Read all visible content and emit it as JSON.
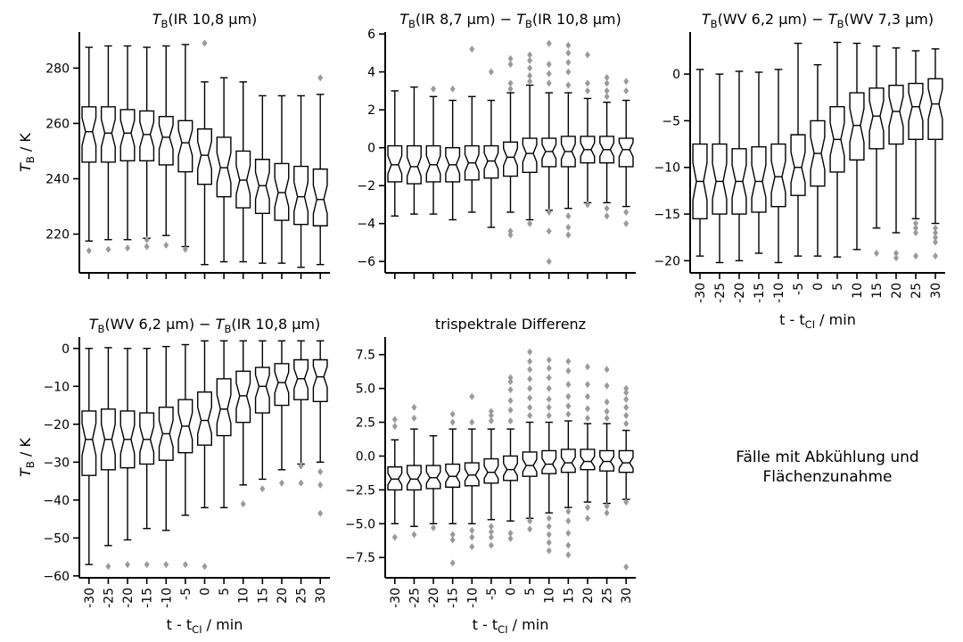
{
  "chart_data": [
    {
      "type": "boxplot",
      "title": "T_B(IR 10,8 µm)",
      "title_parts": [
        "T",
        "B",
        "(IR 10,8 µm)"
      ],
      "ylabel": "T_B / K",
      "ylabel_parts": [
        "T",
        "B",
        " / K"
      ],
      "xlabel": "",
      "ylim": [
        206,
        293
      ],
      "yticks": [
        220,
        240,
        260,
        280
      ],
      "categories": [
        "-30",
        "-25",
        "-20",
        "-15",
        "-10",
        "-5",
        "0",
        "5",
        "10",
        "15",
        "20",
        "25",
        "30"
      ],
      "boxes": [
        {
          "whislo": 217.5,
          "q1": 246,
          "med": 257,
          "q3": 266,
          "whishi": 287.5,
          "fliers": [
            214
          ]
        },
        {
          "whislo": 218,
          "q1": 246,
          "med": 256.5,
          "q3": 266,
          "whishi": 288,
          "fliers": [
            214.5
          ]
        },
        {
          "whislo": 218,
          "q1": 246.5,
          "med": 256.5,
          "q3": 265,
          "whishi": 288,
          "fliers": [
            215
          ]
        },
        {
          "whislo": 218.5,
          "q1": 246.5,
          "med": 256,
          "q3": 264.5,
          "whishi": 287.5,
          "fliers": [
            215.5,
            218
          ]
        },
        {
          "whislo": 219.5,
          "q1": 245,
          "med": 255,
          "q3": 262.5,
          "whishi": 288,
          "fliers": [
            216
          ]
        },
        {
          "whislo": 215.5,
          "q1": 242.5,
          "med": 253,
          "q3": 261,
          "whishi": 288.5,
          "fliers": [
            214.5
          ]
        },
        {
          "whislo": 209,
          "q1": 238,
          "med": 248.5,
          "q3": 258,
          "whishi": 275,
          "fliers": [
            289
          ]
        },
        {
          "whislo": 210,
          "q1": 233.5,
          "med": 244,
          "q3": 255,
          "whishi": 276.5,
          "fliers": []
        },
        {
          "whislo": 210,
          "q1": 229.5,
          "med": 239.5,
          "q3": 250,
          "whishi": 275,
          "fliers": []
        },
        {
          "whislo": 209.5,
          "q1": 227.5,
          "med": 237.5,
          "q3": 247,
          "whishi": 270,
          "fliers": []
        },
        {
          "whislo": 209.5,
          "q1": 225,
          "med": 235,
          "q3": 245.5,
          "whishi": 270,
          "fliers": []
        },
        {
          "whislo": 208,
          "q1": 223.5,
          "med": 233.5,
          "q3": 244.5,
          "whishi": 270,
          "fliers": []
        },
        {
          "whislo": 209,
          "q1": 223,
          "med": 232.5,
          "q3": 243.5,
          "whishi": 270.5,
          "fliers": [
            276.5
          ]
        }
      ]
    },
    {
      "type": "boxplot",
      "title": "T_B(IR 8,7 µm) − T_B(IR 10,8 µm)",
      "title_parts": [
        "T",
        "B",
        "(IR 8,7 µm) − ",
        "T",
        "B",
        "(IR 10,8 µm)"
      ],
      "ylabel": "",
      "xlabel": "",
      "ylim": [
        -6.6,
        6.1
      ],
      "yticks": [
        -6,
        -4,
        -2,
        0,
        2,
        4,
        6
      ],
      "categories": [
        "-30",
        "-25",
        "-20",
        "-15",
        "-10",
        "-5",
        "0",
        "5",
        "10",
        "15",
        "20",
        "25",
        "30"
      ],
      "boxes": [
        {
          "whislo": -3.6,
          "q1": -1.8,
          "med": -0.9,
          "q3": 0.1,
          "whishi": 3.0,
          "fliers": []
        },
        {
          "whislo": -3.5,
          "q1": -1.9,
          "med": -1.0,
          "q3": 0.1,
          "whishi": 3.2,
          "fliers": []
        },
        {
          "whislo": -3.5,
          "q1": -1.8,
          "med": -0.9,
          "q3": 0.1,
          "whishi": 2.7,
          "fliers": [
            3.1
          ]
        },
        {
          "whislo": -3.8,
          "q1": -1.8,
          "med": -0.9,
          "q3": 0.0,
          "whishi": 2.5,
          "fliers": [
            3.1
          ]
        },
        {
          "whislo": -3.4,
          "q1": -1.7,
          "med": -0.8,
          "q3": 0.1,
          "whishi": 2.7,
          "fliers": [
            5.2
          ]
        },
        {
          "whislo": -4.2,
          "q1": -1.6,
          "med": -0.7,
          "q3": 0.1,
          "whishi": 2.5,
          "fliers": [
            4.0
          ]
        },
        {
          "whislo": -3.4,
          "q1": -1.5,
          "med": -0.5,
          "q3": 0.3,
          "whishi": 2.9,
          "fliers": [
            3.1,
            3.4,
            4.4,
            4.7,
            -4.4,
            -4.6
          ]
        },
        {
          "whislo": -3.8,
          "q1": -1.3,
          "med": -0.3,
          "q3": 0.5,
          "whishi": 3.3,
          "fliers": [
            3.5,
            3.8,
            4.2,
            4.6,
            4.9,
            -4.0
          ]
        },
        {
          "whislo": -3.3,
          "q1": -1.0,
          "med": -0.2,
          "q3": 0.5,
          "whishi": 2.9,
          "fliers": [
            3.4,
            3.9,
            4.4,
            5.5,
            -3.4,
            -4.4,
            -6.0
          ]
        },
        {
          "whislo": -3.2,
          "q1": -1.0,
          "med": -0.2,
          "q3": 0.6,
          "whishi": 2.9,
          "fliers": [
            3.3,
            4.0,
            4.5,
            5.0,
            5.4,
            -3.6,
            -4.2,
            -4.6
          ]
        },
        {
          "whislo": -2.9,
          "q1": -0.8,
          "med": -0.1,
          "q3": 0.6,
          "whishi": 2.6,
          "fliers": [
            3.0,
            3.4,
            4.9,
            -3.0
          ]
        },
        {
          "whislo": -2.9,
          "q1": -0.8,
          "med": -0.1,
          "q3": 0.6,
          "whishi": 2.4,
          "fliers": [
            2.7,
            3.0,
            3.4,
            3.7,
            -3.2,
            -3.6
          ]
        },
        {
          "whislo": -3.1,
          "q1": -1.0,
          "med": -0.1,
          "q3": 0.5,
          "whishi": 2.5,
          "fliers": [
            3.0,
            3.5,
            -3.4,
            -4.0
          ]
        }
      ]
    },
    {
      "type": "boxplot",
      "title": "T_B(WV 6,2 µm) − T_B(WV 7,3 µm)",
      "title_parts": [
        "T",
        "B",
        "(WV 6,2 µm) − ",
        "T",
        "B",
        "(WV 7,3 µm)"
      ],
      "ylabel": "",
      "xlabel": "t - t_CI / min",
      "xlabel_parts": [
        "t - t",
        "CI",
        " / min"
      ],
      "ylim": [
        -21.3,
        4.5
      ],
      "yticks": [
        -20,
        -15,
        -10,
        -5,
        0
      ],
      "categories": [
        "-30",
        "-25",
        "-20",
        "-15",
        "-10",
        "-5",
        "0",
        "5",
        "10",
        "15",
        "20",
        "25",
        "30"
      ],
      "boxes": [
        {
          "whislo": -19.5,
          "q1": -15.5,
          "med": -11.5,
          "q3": -7.5,
          "whishi": 0.5,
          "fliers": []
        },
        {
          "whislo": -20.2,
          "q1": -15.0,
          "med": -11.5,
          "q3": -7.5,
          "whishi": 0.0,
          "fliers": []
        },
        {
          "whislo": -20.0,
          "q1": -15.0,
          "med": -11.5,
          "q3": -8.0,
          "whishi": 0.3,
          "fliers": []
        },
        {
          "whislo": -19.2,
          "q1": -14.8,
          "med": -11.5,
          "q3": -7.8,
          "whishi": 0.2,
          "fliers": []
        },
        {
          "whislo": -20.2,
          "q1": -14.2,
          "med": -11.0,
          "q3": -7.5,
          "whishi": 0.5,
          "fliers": []
        },
        {
          "whislo": -19.5,
          "q1": -13.0,
          "med": -10.0,
          "q3": -6.5,
          "whishi": 3.3,
          "fliers": []
        },
        {
          "whislo": -19.5,
          "q1": -12.0,
          "med": -8.5,
          "q3": -5.0,
          "whishi": 1.0,
          "fliers": []
        },
        {
          "whislo": -19.6,
          "q1": -10.5,
          "med": -7.0,
          "q3": -3.5,
          "whishi": 3.4,
          "fliers": []
        },
        {
          "whislo": -18.8,
          "q1": -9.2,
          "med": -5.5,
          "q3": -2.0,
          "whishi": 3.3,
          "fliers": []
        },
        {
          "whislo": -16.5,
          "q1": -8.0,
          "med": -4.5,
          "q3": -1.5,
          "whishi": 3.0,
          "fliers": [
            -19.2
          ]
        },
        {
          "whislo": -17.0,
          "q1": -7.5,
          "med": -4.0,
          "q3": -1.2,
          "whishi": 2.8,
          "fliers": [
            -19.2,
            -19.7
          ]
        },
        {
          "whislo": -15.5,
          "q1": -7.0,
          "med": -3.5,
          "q3": -1.0,
          "whishi": 2.5,
          "fliers": [
            -16.0,
            -16.5,
            -17.0,
            -19.5
          ]
        },
        {
          "whislo": -16.0,
          "q1": -7.0,
          "med": -3.2,
          "q3": -0.5,
          "whishi": 2.7,
          "fliers": [
            -16.5,
            -17.0,
            -17.5,
            -18.0,
            -19.5
          ]
        }
      ]
    },
    {
      "type": "boxplot",
      "title": "T_B(WV 6,2 µm) − T_B(IR 10,8 µm)",
      "title_parts": [
        "T",
        "B",
        "(WV 6,2 µm) − ",
        "T",
        "B",
        "(IR 10,8 µm)"
      ],
      "ylabel": "T_B / K",
      "ylabel_parts": [
        "T",
        "B",
        " / K"
      ],
      "xlabel": "t - t_CI / min",
      "xlabel_parts": [
        "t - t",
        "CI",
        " / min"
      ],
      "ylim": [
        -60.5,
        3.0
      ],
      "yticks": [
        -60,
        -50,
        -40,
        -30,
        -20,
        -10,
        0
      ],
      "categories": [
        "-30",
        "-25",
        "-20",
        "-15",
        "-10",
        "-5",
        "0",
        "5",
        "10",
        "15",
        "20",
        "25",
        "30"
      ],
      "boxes": [
        {
          "whislo": -57.0,
          "q1": -33.5,
          "med": -24.0,
          "q3": -16.5,
          "whishi": 0.0,
          "fliers": []
        },
        {
          "whislo": -52.0,
          "q1": -32.0,
          "med": -24.0,
          "q3": -16.0,
          "whishi": 0.2,
          "fliers": [
            -57.5
          ]
        },
        {
          "whislo": -50.5,
          "q1": -31.5,
          "med": -24.0,
          "q3": -16.5,
          "whishi": 0.0,
          "fliers": [
            -57.0
          ]
        },
        {
          "whislo": -47.5,
          "q1": -30.5,
          "med": -24.0,
          "q3": -17.0,
          "whishi": 0.0,
          "fliers": [
            -57.0
          ]
        },
        {
          "whislo": -48.0,
          "q1": -29.5,
          "med": -22.5,
          "q3": -15.5,
          "whishi": 0.5,
          "fliers": [
            -57.0
          ]
        },
        {
          "whislo": -44.0,
          "q1": -27.5,
          "med": -20.5,
          "q3": -13.5,
          "whishi": 1.0,
          "fliers": [
            -57.0
          ]
        },
        {
          "whislo": -42.0,
          "q1": -25.5,
          "med": -19.0,
          "q3": -11.5,
          "whishi": 2.0,
          "fliers": [
            -57.5
          ]
        },
        {
          "whislo": -42.0,
          "q1": -23.0,
          "med": -16.0,
          "q3": -8.0,
          "whishi": 2.0,
          "fliers": []
        },
        {
          "whislo": -36.0,
          "q1": -19.5,
          "med": -12.5,
          "q3": -6.0,
          "whishi": 2.0,
          "fliers": [
            -41.0
          ]
        },
        {
          "whislo": -34.5,
          "q1": -17.0,
          "med": -10.0,
          "q3": -5.0,
          "whishi": 2.0,
          "fliers": [
            -37.0
          ]
        },
        {
          "whislo": -32.0,
          "q1": -15.0,
          "med": -9.0,
          "q3": -4.0,
          "whishi": 2.0,
          "fliers": [
            -35.5
          ]
        },
        {
          "whislo": -30.5,
          "q1": -13.5,
          "med": -8.0,
          "q3": -3.0,
          "whishi": 2.0,
          "fliers": [
            -31.0,
            -35.5
          ]
        },
        {
          "whislo": -30.0,
          "q1": -14.0,
          "med": -7.5,
          "q3": -3.0,
          "whishi": 2.0,
          "fliers": [
            -32.5,
            -36.0,
            -43.5
          ]
        }
      ]
    },
    {
      "type": "boxplot",
      "title": "trispektrale Differenz",
      "ylabel": "",
      "xlabel": "t - t_CI / min",
      "xlabel_parts": [
        "t - t",
        "CI",
        " / min"
      ],
      "ylim": [
        -9.0,
        8.8
      ],
      "yticks": [
        -7.5,
        -5.0,
        -2.5,
        0.0,
        2.5,
        5.0,
        7.5
      ],
      "ytick_labels": [
        "−7.5",
        "−5.0",
        "−2.5",
        "0.0",
        "2.5",
        "5.0",
        "7.5"
      ],
      "categories": [
        "-30",
        "-25",
        "-20",
        "-15",
        "-10",
        "-5",
        "0",
        "5",
        "10",
        "15",
        "20",
        "25",
        "30"
      ],
      "boxes": [
        {
          "whislo": -5.0,
          "q1": -2.5,
          "med": -1.7,
          "q3": -0.8,
          "whishi": 1.2,
          "fliers": [
            2.2,
            2.7,
            -6.0
          ]
        },
        {
          "whislo": -5.2,
          "q1": -2.5,
          "med": -1.7,
          "q3": -0.7,
          "whishi": 2.0,
          "fliers": [
            2.8,
            3.6,
            -5.8
          ]
        },
        {
          "whislo": -5.0,
          "q1": -2.4,
          "med": -1.6,
          "q3": -0.7,
          "whishi": 1.5,
          "fliers": [
            -5.3
          ]
        },
        {
          "whislo": -5.0,
          "q1": -2.3,
          "med": -1.5,
          "q3": -0.6,
          "whishi": 2.0,
          "fliers": [
            2.5,
            3.1,
            -5.8,
            -6.2,
            -7.9
          ]
        },
        {
          "whislo": -5.0,
          "q1": -2.2,
          "med": -1.4,
          "q3": -0.5,
          "whishi": 2.0,
          "fliers": [
            2.5,
            4.4,
            -5.5,
            -6.0,
            -6.7
          ]
        },
        {
          "whislo": -4.7,
          "q1": -2.0,
          "med": -1.2,
          "q3": -0.2,
          "whishi": 2.0,
          "fliers": [
            2.6,
            3.0,
            3.3,
            -5.2,
            -5.6,
            -6.0,
            -6.6
          ]
        },
        {
          "whislo": -4.8,
          "q1": -1.8,
          "med": -1.0,
          "q3": 0.0,
          "whishi": 2.0,
          "fliers": [
            2.6,
            3.4,
            4.1,
            4.9,
            5.5,
            5.8,
            -5.7,
            -6.1
          ]
        },
        {
          "whislo": -4.6,
          "q1": -1.5,
          "med": -0.7,
          "q3": 0.3,
          "whishi": 2.5,
          "fliers": [
            3.0,
            3.6,
            4.3,
            5.0,
            5.7,
            6.4,
            7.0,
            7.7,
            -4.8,
            -5.4
          ]
        },
        {
          "whislo": -4.2,
          "q1": -1.3,
          "med": -0.6,
          "q3": 0.4,
          "whishi": 2.5,
          "fliers": [
            3.0,
            3.6,
            4.2,
            5.0,
            5.8,
            6.5,
            7.1,
            -4.6,
            -5.2,
            -5.8,
            -6.4,
            -7.0
          ]
        },
        {
          "whislo": -3.8,
          "q1": -1.2,
          "med": -0.5,
          "q3": 0.5,
          "whishi": 2.6,
          "fliers": [
            3.1,
            3.7,
            4.4,
            5.3,
            6.3,
            7.0,
            -4.1,
            -4.8,
            -5.7,
            -6.6,
            -7.3
          ]
        },
        {
          "whislo": -3.4,
          "q1": -1.0,
          "med": -0.4,
          "q3": 0.5,
          "whishi": 2.4,
          "fliers": [
            2.8,
            3.5,
            4.4,
            5.3,
            6.6,
            -3.8,
            -4.6
          ]
        },
        {
          "whislo": -3.5,
          "q1": -1.1,
          "med": -0.4,
          "q3": 0.4,
          "whishi": 2.4,
          "fliers": [
            2.8,
            3.3,
            4.0,
            5.2,
            6.4,
            -3.7,
            -4.2
          ]
        },
        {
          "whislo": -3.2,
          "q1": -1.2,
          "med": -0.5,
          "q3": 0.4,
          "whishi": 1.9,
          "fliers": [
            2.4,
            3.0,
            3.6,
            4.2,
            4.7,
            5.0,
            -3.4,
            -8.2
          ]
        }
      ]
    }
  ],
  "annotation": {
    "line1": "Fälle mit Abkühlung und",
    "line2": "Flächenzunahme"
  },
  "colors": {
    "box_edge": "#000000",
    "flier": "#9a9a9a",
    "axis": "#000000"
  }
}
